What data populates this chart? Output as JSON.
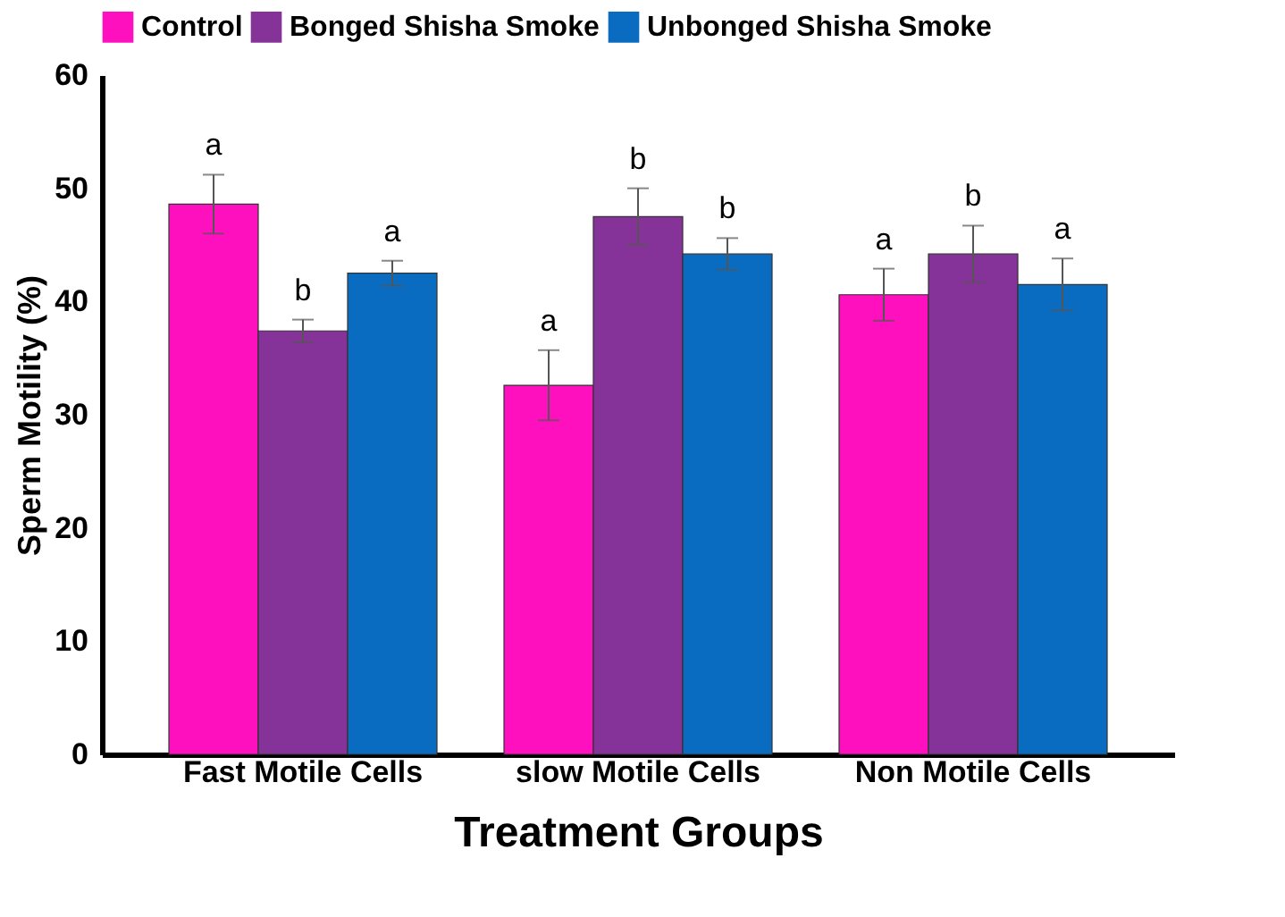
{
  "chart_data": {
    "type": "bar",
    "xlabel": "Treatment Groups",
    "ylabel": "Sperm Motility (%)",
    "categories": [
      "Fast Motile Cells",
      "slow Motile Cells",
      "Non Motile Cells"
    ],
    "series": [
      {
        "name": "Control",
        "color": "#ff10be",
        "values": [
          48.6,
          32.6,
          40.6
        ],
        "errors": [
          2.6,
          3.1,
          2.3
        ],
        "value_labels": [
          "a",
          "a",
          "a"
        ]
      },
      {
        "name": "Bonged Shisha Smoke",
        "color": "#863399",
        "values": [
          37.4,
          47.5,
          44.2
        ],
        "errors": [
          1.0,
          2.5,
          2.5
        ],
        "value_labels": [
          "b",
          "b",
          "b"
        ]
      },
      {
        "name": "Unbonged Shisha Smoke",
        "color": "#0a6cc0",
        "values": [
          42.5,
          44.2,
          41.5
        ],
        "errors": [
          1.1,
          1.4,
          2.3
        ],
        "value_labels": [
          "a",
          "b",
          "a"
        ]
      }
    ],
    "ylim": [
      0,
      60
    ],
    "yticks": [
      0,
      10,
      20,
      30,
      40,
      50,
      60
    ],
    "grid": false,
    "legend": "top"
  }
}
